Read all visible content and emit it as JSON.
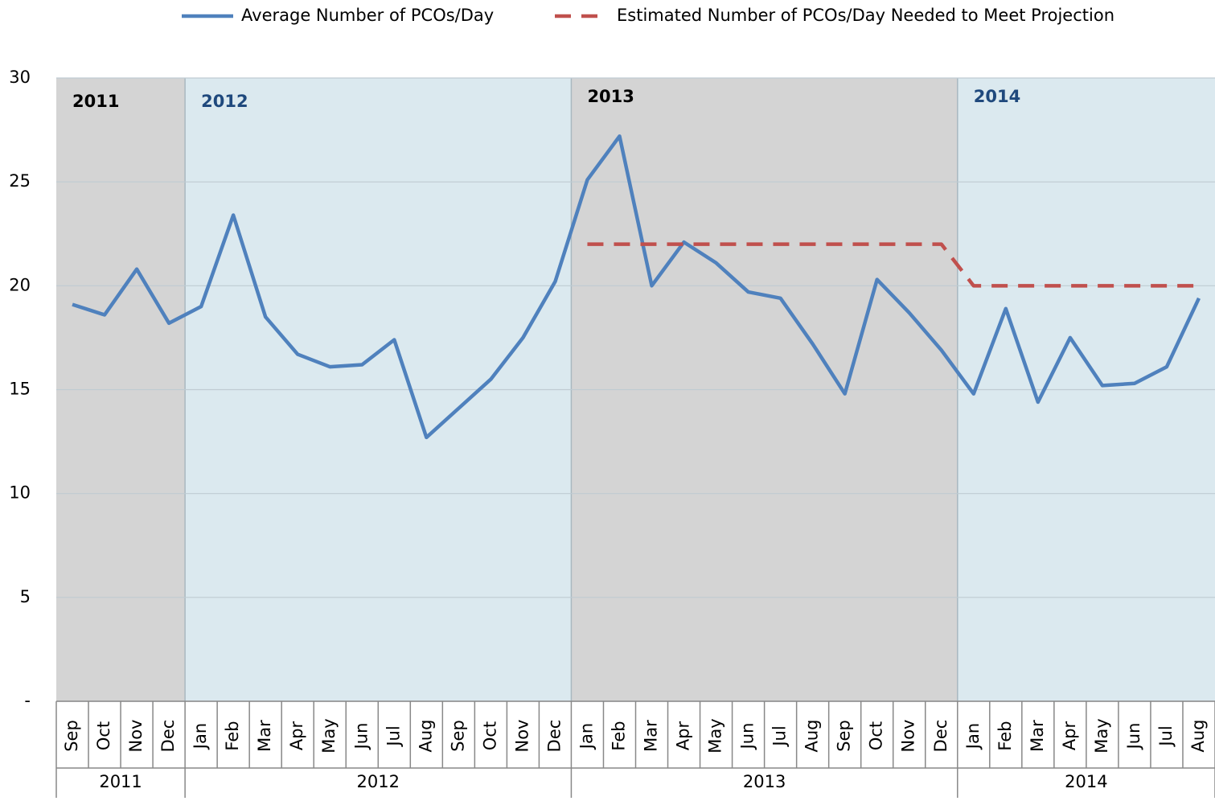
{
  "chart_data": {
    "type": "line",
    "categories": [
      "Sep",
      "Oct",
      "Nov",
      "Dec",
      "Jan",
      "Feb",
      "Mar",
      "Apr",
      "May",
      "Jun",
      "Jul",
      "Aug",
      "Sep",
      "Oct",
      "Nov",
      "Dec",
      "Jan",
      "Feb",
      "Mar",
      "Apr",
      "May",
      "Jun",
      "Jul",
      "Aug",
      "Sep",
      "Oct",
      "Nov",
      "Dec",
      "Jan",
      "Feb",
      "Mar",
      "Apr",
      "May",
      "Jun",
      "Jul",
      "Aug"
    ],
    "years": [
      "2011",
      "2012",
      "2013",
      "2014"
    ],
    "series": [
      {
        "name": "Average Number of PCOs/Day",
        "color": "#4f81bd",
        "dash": false,
        "values": [
          19.1,
          18.6,
          20.8,
          18.2,
          19.0,
          23.4,
          18.5,
          16.7,
          16.1,
          16.2,
          17.4,
          12.7,
          14.1,
          15.5,
          17.5,
          20.2,
          25.1,
          27.2,
          20.0,
          22.1,
          21.1,
          19.7,
          19.4,
          17.2,
          14.8,
          20.3,
          18.7,
          16.9,
          14.8,
          18.9,
          14.4,
          17.5,
          15.2,
          15.3,
          16.1,
          19.4
        ]
      },
      {
        "name": "Estimated Number of PCOs/Day Needed to Meet Projection",
        "color": "#c0504d",
        "dash": true,
        "values": [
          null,
          null,
          null,
          null,
          null,
          null,
          null,
          null,
          null,
          null,
          null,
          null,
          null,
          null,
          null,
          null,
          22,
          22,
          22,
          22,
          22,
          22,
          22,
          22,
          22,
          22,
          22,
          22,
          20,
          20,
          20,
          20,
          20,
          20,
          20,
          20
        ]
      }
    ],
    "ylim": [
      0,
      30
    ],
    "yticks": [
      {
        "value": 0,
        "label": "-"
      },
      5,
      10,
      15,
      20,
      25,
      30
    ],
    "grid": true,
    "legend": "top"
  }
}
